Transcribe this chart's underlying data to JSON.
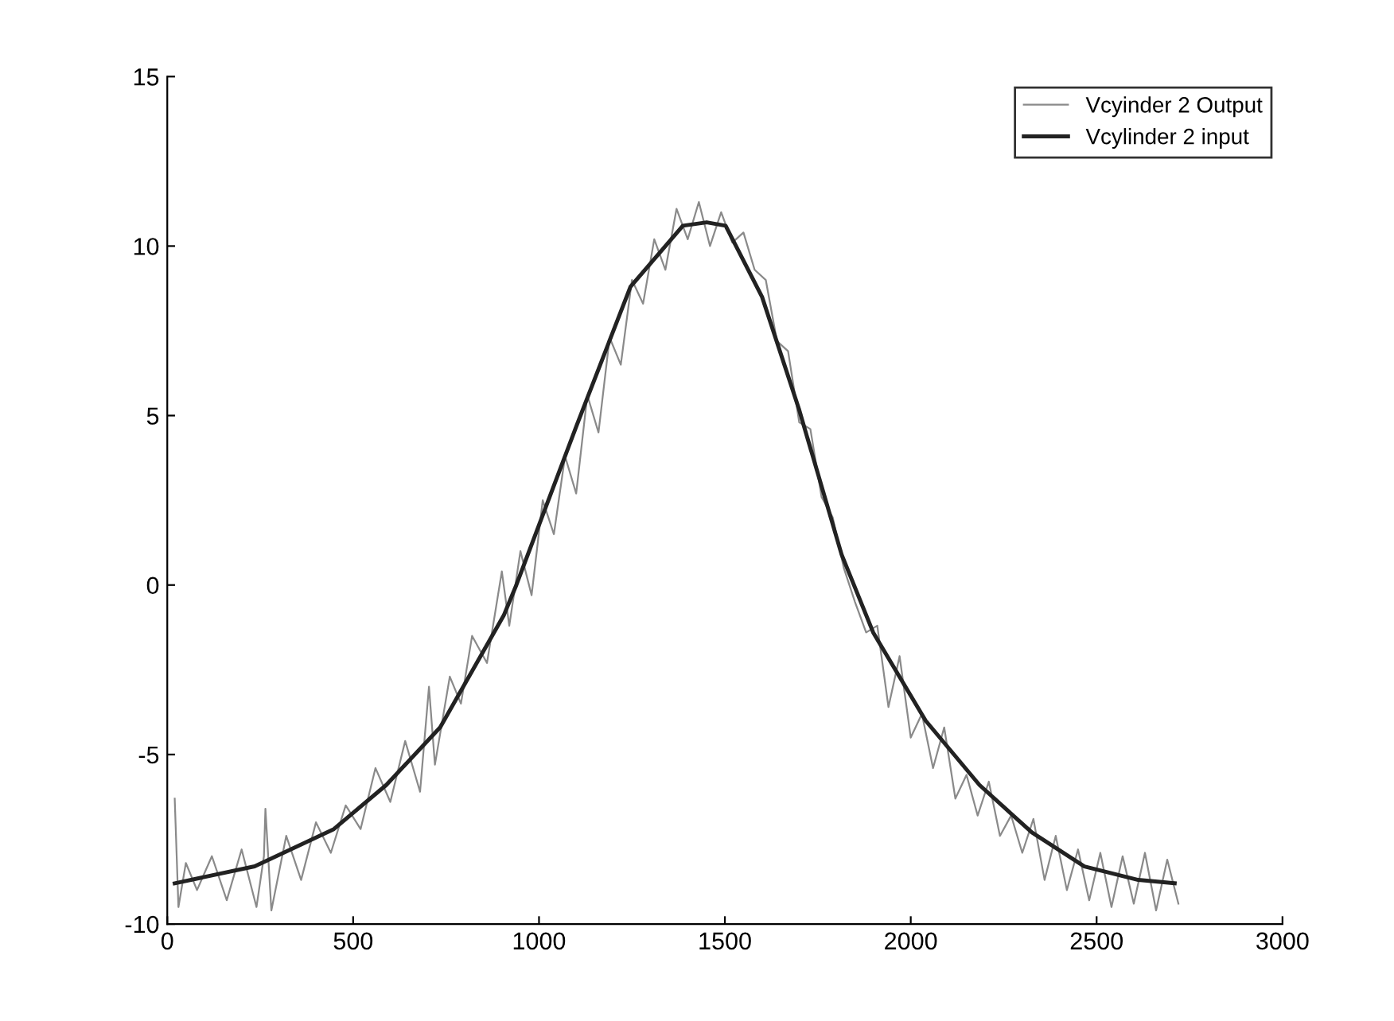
{
  "chart_data": {
    "type": "line",
    "xlim": [
      0,
      3000
    ],
    "ylim": [
      -10,
      15
    ],
    "xticks": [
      0,
      500,
      1000,
      1500,
      2000,
      2500,
      3000
    ],
    "yticks": [
      -10,
      -5,
      0,
      5,
      10,
      15
    ],
    "grid": false,
    "legend": "top right",
    "marker": "none",
    "series": [
      {
        "name": "Vcyinder 2 Output",
        "color": "#8a8a8a",
        "line_style": "solid",
        "x": [
          20,
          30,
          50,
          80,
          120,
          160,
          200,
          240,
          260,
          264,
          280,
          320,
          360,
          400,
          440,
          480,
          520,
          560,
          600,
          640,
          680,
          704,
          720,
          760,
          790,
          820,
          860,
          900,
          920,
          950,
          980,
          1010,
          1040,
          1070,
          1100,
          1130,
          1160,
          1190,
          1220,
          1250,
          1280,
          1310,
          1340,
          1370,
          1400,
          1430,
          1460,
          1490,
          1520,
          1550,
          1580,
          1610,
          1640,
          1670,
          1700,
          1730,
          1760,
          1790,
          1820,
          1850,
          1880,
          1910,
          1940,
          1970,
          2000,
          2030,
          2060,
          2090,
          2120,
          2150,
          2180,
          2210,
          2240,
          2270,
          2300,
          2330,
          2360,
          2390,
          2420,
          2450,
          2480,
          2510,
          2540,
          2570,
          2600,
          2630,
          2660,
          2690,
          2720
        ],
        "values": [
          -6.3,
          -9.5,
          -8.2,
          -9.0,
          -8.0,
          -9.3,
          -7.8,
          -9.5,
          -8.0,
          -6.6,
          -9.6,
          -7.4,
          -8.7,
          -7.0,
          -7.9,
          -6.5,
          -7.2,
          -5.4,
          -6.4,
          -4.6,
          -6.1,
          -3.0,
          -5.3,
          -2.7,
          -3.5,
          -1.5,
          -2.3,
          0.4,
          -1.2,
          1.0,
          -0.3,
          2.5,
          1.5,
          3.8,
          2.7,
          5.6,
          4.5,
          7.3,
          6.5,
          9.0,
          8.3,
          10.2,
          9.3,
          11.1,
          10.2,
          11.3,
          10.0,
          11.0,
          10.1,
          10.4,
          9.3,
          9.0,
          7.2,
          6.9,
          4.8,
          4.6,
          2.6,
          2.0,
          0.5,
          -0.5,
          -1.4,
          -1.2,
          -3.6,
          -2.1,
          -4.5,
          -3.8,
          -5.4,
          -4.2,
          -6.3,
          -5.6,
          -6.8,
          -5.8,
          -7.4,
          -6.8,
          -7.9,
          -6.9,
          -8.7,
          -7.4,
          -9.0,
          -7.8,
          -9.3,
          -7.9,
          -9.5,
          -8.0,
          -9.4,
          -7.9,
          -9.6,
          -8.1,
          -9.4
        ]
      },
      {
        "name": "Vcylinder 2 input",
        "color": "#222222",
        "line_style": "solid",
        "x": [
          20,
          235,
          448,
          589,
          734,
          905,
          939,
          1101,
          1246,
          1387,
          1451,
          1502,
          1600,
          1699,
          1814,
          1899,
          2040,
          2185,
          2326,
          2467,
          2612,
          2710
        ],
        "values": [
          -8.8,
          -8.3,
          -7.2,
          -5.9,
          -4.2,
          -0.9,
          0,
          4.7,
          8.8,
          10.6,
          10.7,
          10.6,
          8.5,
          5.2,
          0.9,
          -1.4,
          -4.0,
          -5.9,
          -7.3,
          -8.3,
          -8.7,
          -8.8
        ]
      }
    ]
  }
}
